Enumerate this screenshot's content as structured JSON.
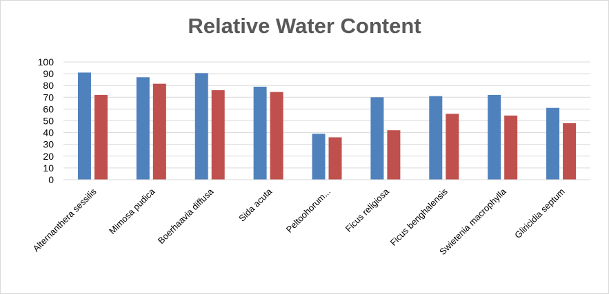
{
  "chart_data": {
    "type": "bar",
    "title": "Relative Water Content",
    "xlabel": "",
    "ylabel": "",
    "categories": [
      "Alternanthera sessilis",
      "Mimosa pudica",
      "Boerhaavia diffusa",
      "Sida acuta",
      "Peltoohorum...",
      "Ficus religiosa",
      "Ficus benghalensis",
      "Swietenia macrophylla",
      "Gliricidia septum"
    ],
    "series": [
      {
        "color": "#4f81bd",
        "values": [
          91,
          87,
          90.5,
          79,
          39,
          70,
          71,
          72,
          61
        ]
      },
      {
        "color": "#c0504d",
        "values": [
          72,
          81.5,
          76,
          74.5,
          36,
          42,
          56,
          54.5,
          48
        ]
      }
    ],
    "ylim": [
      0,
      100
    ],
    "yticks": [
      0,
      10,
      20,
      30,
      40,
      50,
      60,
      70,
      80,
      90,
      100
    ],
    "grid": true,
    "legend": "none"
  }
}
